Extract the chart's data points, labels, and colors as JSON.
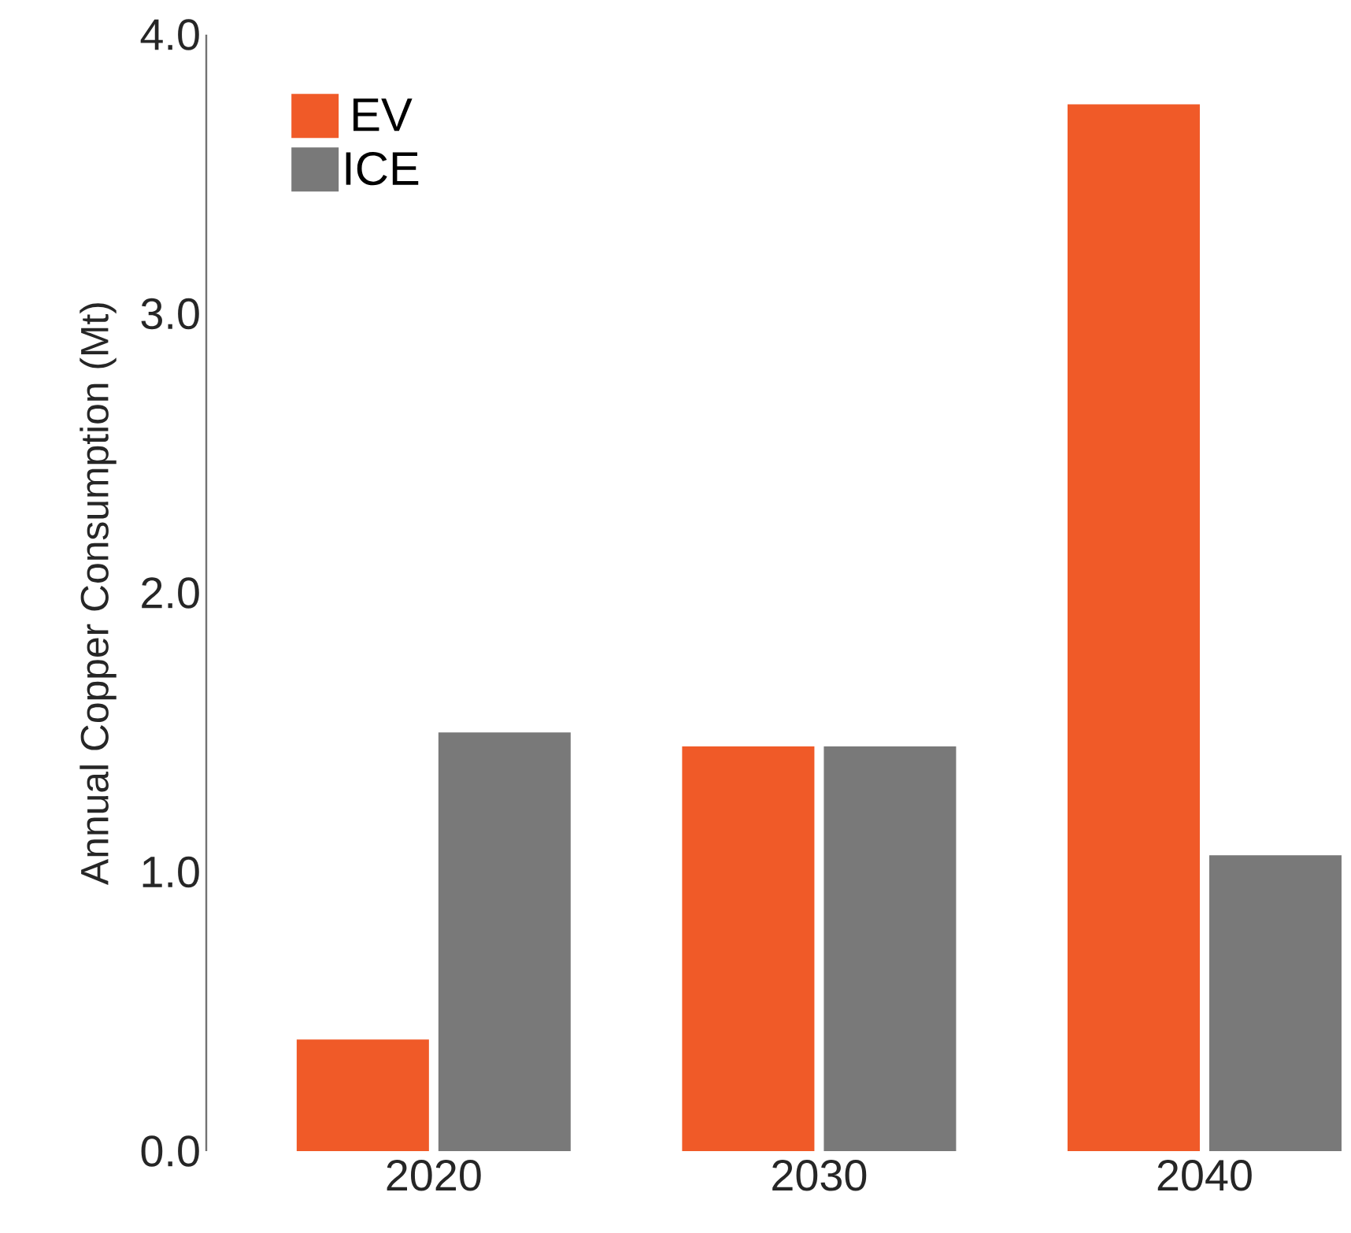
{
  "chart_data": {
    "type": "bar",
    "ylabel": "Annual Copper Consumption (Mt)",
    "categories": [
      "2020",
      "2030",
      "2040"
    ],
    "series": [
      {
        "name": "EV",
        "color": "#f05a28",
        "values": [
          0.4,
          1.45,
          3.75
        ]
      },
      {
        "name": "ICE",
        "color": "#797979",
        "values": [
          1.5,
          1.45,
          1.06
        ]
      }
    ],
    "ylim": [
      0,
      4
    ],
    "yticks": [
      {
        "value": 0,
        "label": "0.0"
      },
      {
        "value": 1,
        "label": "1.0"
      },
      {
        "value": 2,
        "label": "2.0"
      },
      {
        "value": 3,
        "label": "3.0"
      },
      {
        "value": 4,
        "label": "4.0"
      }
    ],
    "grid": false,
    "legend": "top left"
  }
}
